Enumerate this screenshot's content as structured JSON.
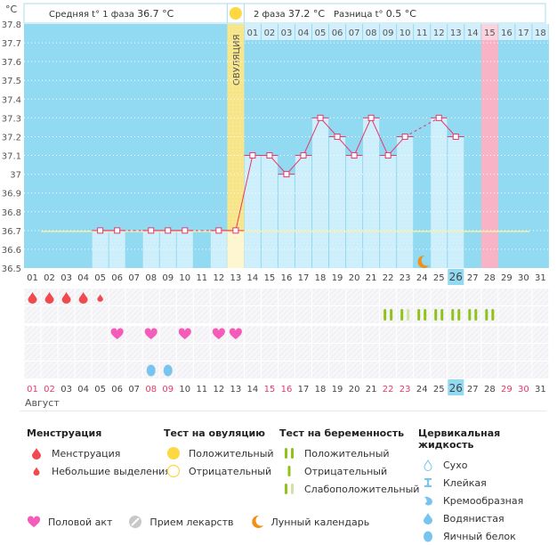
{
  "header": {
    "unit": "°C",
    "phase1_label": "Средняя t° 1 фаза",
    "phase1_value": "36.7 °C",
    "phase2_label": "2 фаза",
    "phase2_value": "37.2 °C",
    "diff_label": "Разница t°",
    "diff_value": "0.5 °C",
    "ovulation_label": "ОВУЛЯЦИЯ"
  },
  "month_label": "Август",
  "colors": {
    "plot_bg": "#92d9f2",
    "bar_fill": "#cdeefb",
    "line": "#e8386a",
    "coverline": "#f7f0a8",
    "ovulation": "#f7e58a",
    "period_forecast": "#f9b3c6",
    "today_bg": "#92d9f2",
    "weekend_text": "#e8386a",
    "menstruation": "#f04a4f",
    "heart": "#f55bb8",
    "pregnancy_test": "#8fc21a",
    "pregnancy_test_faint": "#cfe3a4",
    "egg_white": "#79c4ef",
    "moon": "#f28f14",
    "ovulation_test": "#fdd843"
  },
  "chart_data": {
    "type": "bar+line",
    "title": "Basal body temperature chart",
    "xlabel": "Август",
    "ylabel": "°C",
    "ylim": [
      36.5,
      37.8
    ],
    "yticks": [
      "36.5",
      "36.6",
      "36.7",
      "36.8",
      "36.9",
      "37",
      "37.1",
      "37.2",
      "37.3",
      "37.4",
      "37.5",
      "37.6",
      "37.7",
      "37.8"
    ],
    "grid": true,
    "days": [
      "01",
      "02",
      "03",
      "04",
      "05",
      "06",
      "07",
      "08",
      "09",
      "10",
      "11",
      "12",
      "13",
      "14",
      "15",
      "16",
      "17",
      "18",
      "19",
      "20",
      "21",
      "22",
      "23",
      "24",
      "25",
      "26",
      "27",
      "28",
      "29",
      "30",
      "31"
    ],
    "weekend_days": [
      "01",
      "02",
      "08",
      "09",
      "15",
      "16",
      "22",
      "23",
      "29",
      "30"
    ],
    "today": "26",
    "temperatures": [
      null,
      null,
      null,
      null,
      36.7,
      36.7,
      null,
      36.7,
      36.7,
      36.7,
      null,
      36.7,
      36.7,
      37.1,
      37.1,
      37.0,
      37.1,
      37.3,
      37.2,
      37.1,
      37.3,
      37.1,
      37.2,
      null,
      37.3,
      37.2,
      null,
      null,
      null,
      null,
      null
    ],
    "coverline": 36.7,
    "coverline_range": [
      "02",
      "30"
    ],
    "ovulation_day": "13",
    "period_forecast_day": "28",
    "cycle_days_start_date": "14",
    "cycle_days": [
      "01",
      "02",
      "03",
      "04",
      "05",
      "06",
      "07",
      "08",
      "09",
      "10",
      "11",
      "12",
      "13",
      "14",
      "15",
      "16",
      "17",
      "18"
    ],
    "cycle_day_highlight": "15",
    "moon_day": "24",
    "markers": {
      "menstruation": [
        "01",
        "02",
        "03",
        "04"
      ],
      "spotting": [
        "05"
      ],
      "pregnancy_test_positive": [
        "22",
        "24",
        "25",
        "26",
        "27",
        "28"
      ],
      "pregnancy_test_faint": [
        "23"
      ],
      "intercourse": [
        "06",
        "08",
        "10",
        "12",
        "13"
      ],
      "cervical_egg_white": [
        "08",
        "09"
      ]
    }
  },
  "legend": {
    "menstruation": {
      "title": "Менструация",
      "items": [
        "Менструация",
        "Небольшие выделения"
      ]
    },
    "ovulation_test": {
      "title": "Тест на овуляцию",
      "items": [
        "Положительный",
        "Отрицательный"
      ]
    },
    "pregnancy_test": {
      "title": "Тест на беременность",
      "items": [
        "Положительный",
        "Отрицательный",
        "Слабоположительный"
      ]
    },
    "cervical_fluid": {
      "title": "Цервикальная жидкость",
      "items": [
        "Сухо",
        "Клейкая",
        "Кремообразная",
        "Водянистая",
        "Яичный белок"
      ]
    },
    "other": [
      "Половой акт",
      "Прием лекарств",
      "Лунный календарь"
    ]
  }
}
